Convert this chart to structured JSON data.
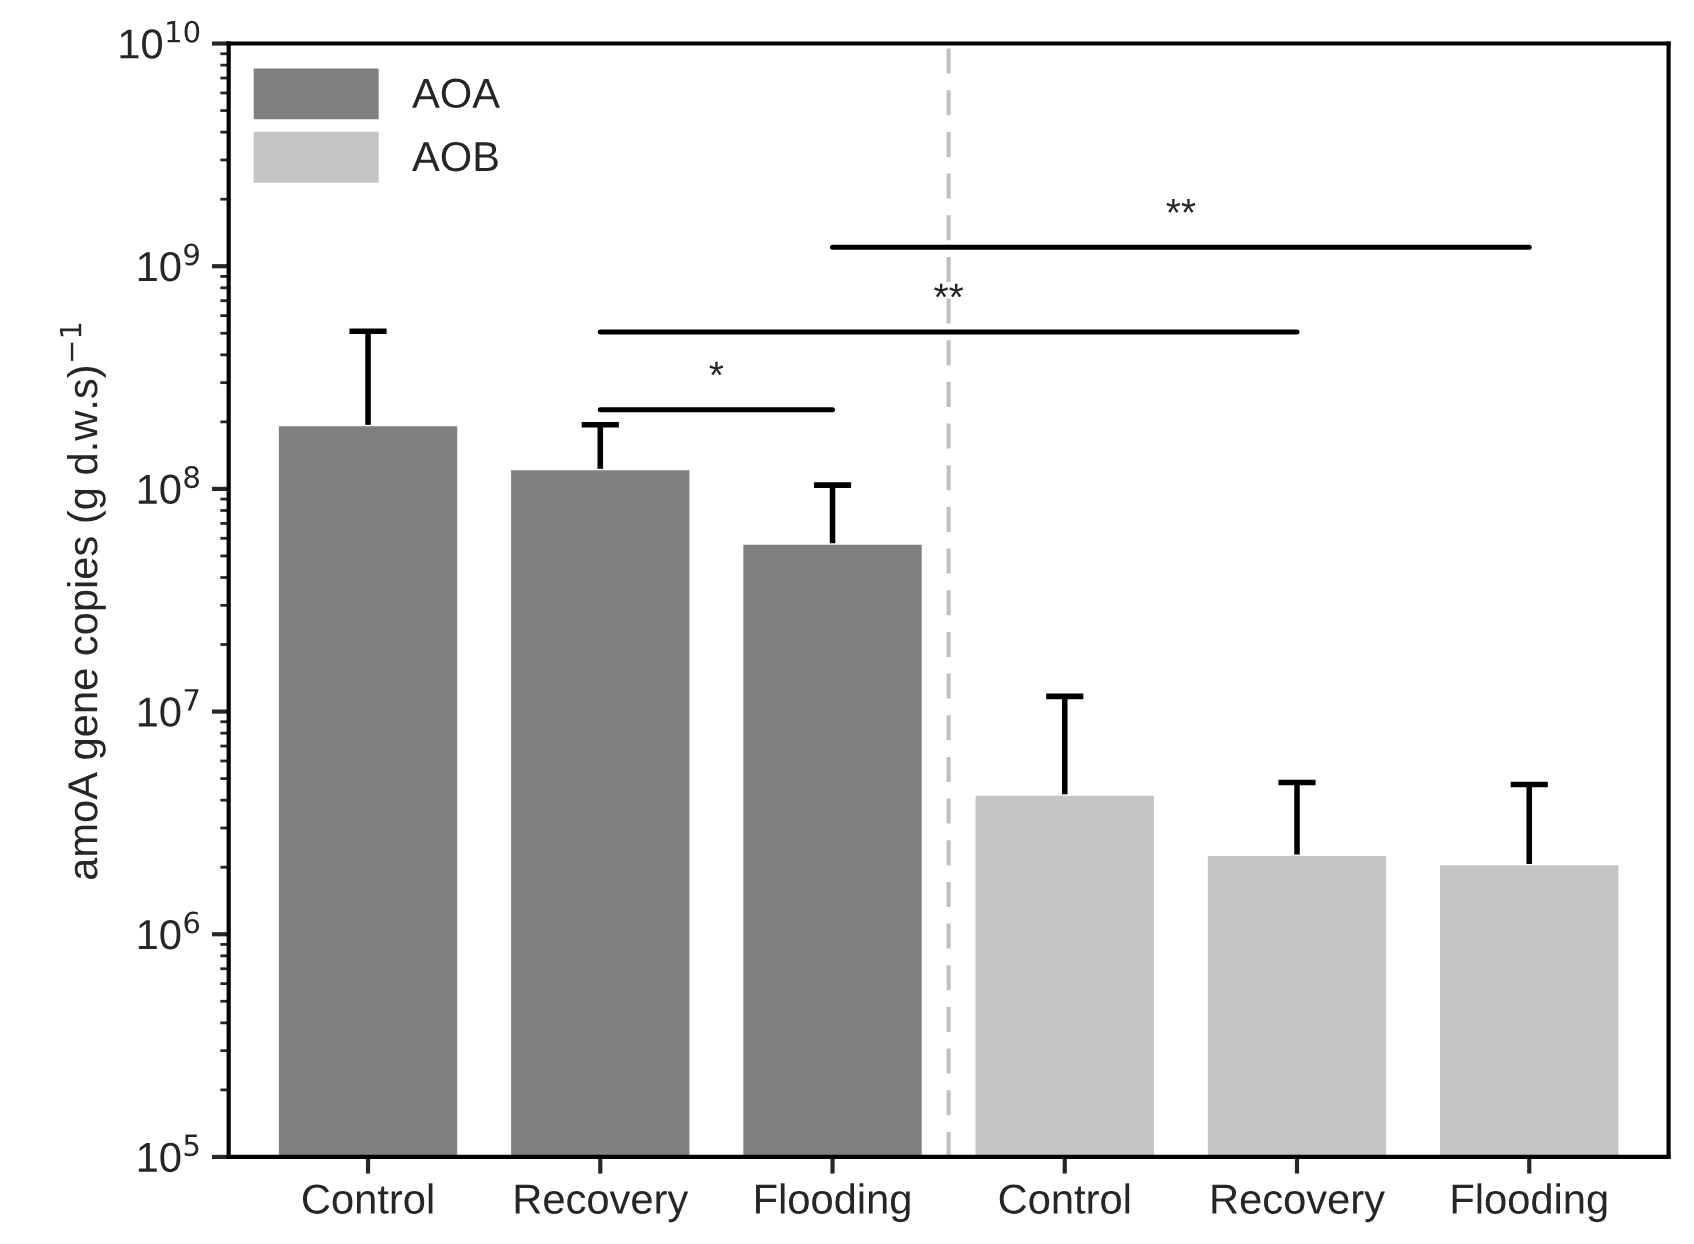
{
  "chart_data": {
    "type": "bar",
    "ylabel": "amoA gene copies (g d.w.s)$^{−1}$",
    "categories": [
      "Control",
      "Recovery",
      "Flooding",
      "Control",
      "Recovery",
      "Flooding"
    ],
    "series": [
      {
        "name": "AOA",
        "color": "#808080",
        "values": [
          194000000,
          123000000,
          57000000,
          null,
          null,
          null
        ],
        "errors": [
          [
            194000000,
            510000000
          ],
          [
            123000000,
            194000000
          ],
          [
            57000000,
            104000000
          ],
          null,
          null,
          null
        ]
      },
      {
        "name": "AOB",
        "color": "#c4c4c4",
        "values": [
          null,
          null,
          null,
          4250000,
          2280000,
          2070000
        ],
        "errors": [
          null,
          null,
          null,
          [
            4250000,
            11700000
          ],
          [
            2280000,
            4800000
          ],
          [
            2070000,
            4700000
          ]
        ]
      }
    ],
    "log": true,
    "ylim": [
      100000,
      10000000000
    ],
    "yticks": [
      {
        "value": 100000,
        "label": "10$^{5}$"
      },
      {
        "value": 1000000,
        "label": "10$^{6}$"
      },
      {
        "value": 10000000,
        "label": "10$^{7}$"
      },
      {
        "value": 100000000,
        "label": "10$^{8}$"
      },
      {
        "value": 1000000000,
        "label": "10$^{9}$"
      },
      {
        "value": 10000000000,
        "label": "10$^{10}$"
      }
    ],
    "annotations": [
      "*",
      "**",
      "**"
    ],
    "legend": "top left",
    "grid": false
  }
}
